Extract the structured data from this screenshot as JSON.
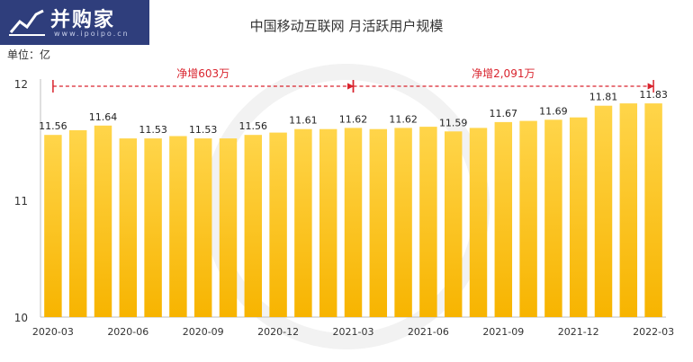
{
  "logo": {
    "text": "并购家",
    "sub": "www.ipoipo.cn"
  },
  "chart_data": {
    "type": "bar",
    "title": "中国移动互联网 月活跃用户规模",
    "unit": "单位：亿",
    "xlabel": "",
    "ylabel": "",
    "ylim": [
      10,
      12
    ],
    "yticks": [
      10,
      11,
      12
    ],
    "categories": [
      "2020-03",
      "2020-04",
      "2020-05",
      "2020-06",
      "2020-07",
      "2020-08",
      "2020-09",
      "2020-10",
      "2020-11",
      "2020-12",
      "2021-01",
      "2021-02",
      "2021-03",
      "2021-04",
      "2021-05",
      "2021-06",
      "2021-07",
      "2021-08",
      "2021-09",
      "2021-10",
      "2021-11",
      "2021-12",
      "2022-01",
      "2022-02",
      "2022-03"
    ],
    "xtick_labels": [
      "2020-03",
      "2020-06",
      "2020-09",
      "2020-12",
      "2021-03",
      "2021-06",
      "2021-09",
      "2021-12",
      "2022-03"
    ],
    "xtick_indices": [
      0,
      3,
      6,
      9,
      12,
      15,
      18,
      21,
      24
    ],
    "values": [
      11.56,
      11.6,
      11.64,
      11.53,
      11.53,
      11.55,
      11.53,
      11.53,
      11.56,
      11.58,
      11.61,
      11.61,
      11.62,
      11.61,
      11.62,
      11.63,
      11.59,
      11.62,
      11.67,
      11.68,
      11.69,
      11.71,
      11.81,
      11.83,
      11.83
    ],
    "data_labels": [
      {
        "index": 0,
        "text": "11.56"
      },
      {
        "index": 2,
        "text": "11.64"
      },
      {
        "index": 4,
        "text": "11.53"
      },
      {
        "index": 6,
        "text": "11.53"
      },
      {
        "index": 8,
        "text": "11.56"
      },
      {
        "index": 10,
        "text": "11.61"
      },
      {
        "index": 12,
        "text": "11.62"
      },
      {
        "index": 14,
        "text": "11.62"
      },
      {
        "index": 16,
        "text": "11.59"
      },
      {
        "index": 18,
        "text": "11.67"
      },
      {
        "index": 20,
        "text": "11.69"
      },
      {
        "index": 22,
        "text": "11.81"
      },
      {
        "index": 24,
        "text": "11.83"
      }
    ],
    "annotations": [
      {
        "text": "净增603万",
        "from_index": 0,
        "to_index": 12
      },
      {
        "text": "净增2,091万",
        "from_index": 12,
        "to_index": 24
      }
    ],
    "colors": {
      "bar_top": "#ffd54a",
      "bar_bottom": "#f7b400",
      "annotation": "#d9232d",
      "axis": "#bfbfbf"
    },
    "grid": false,
    "legend": "none"
  }
}
